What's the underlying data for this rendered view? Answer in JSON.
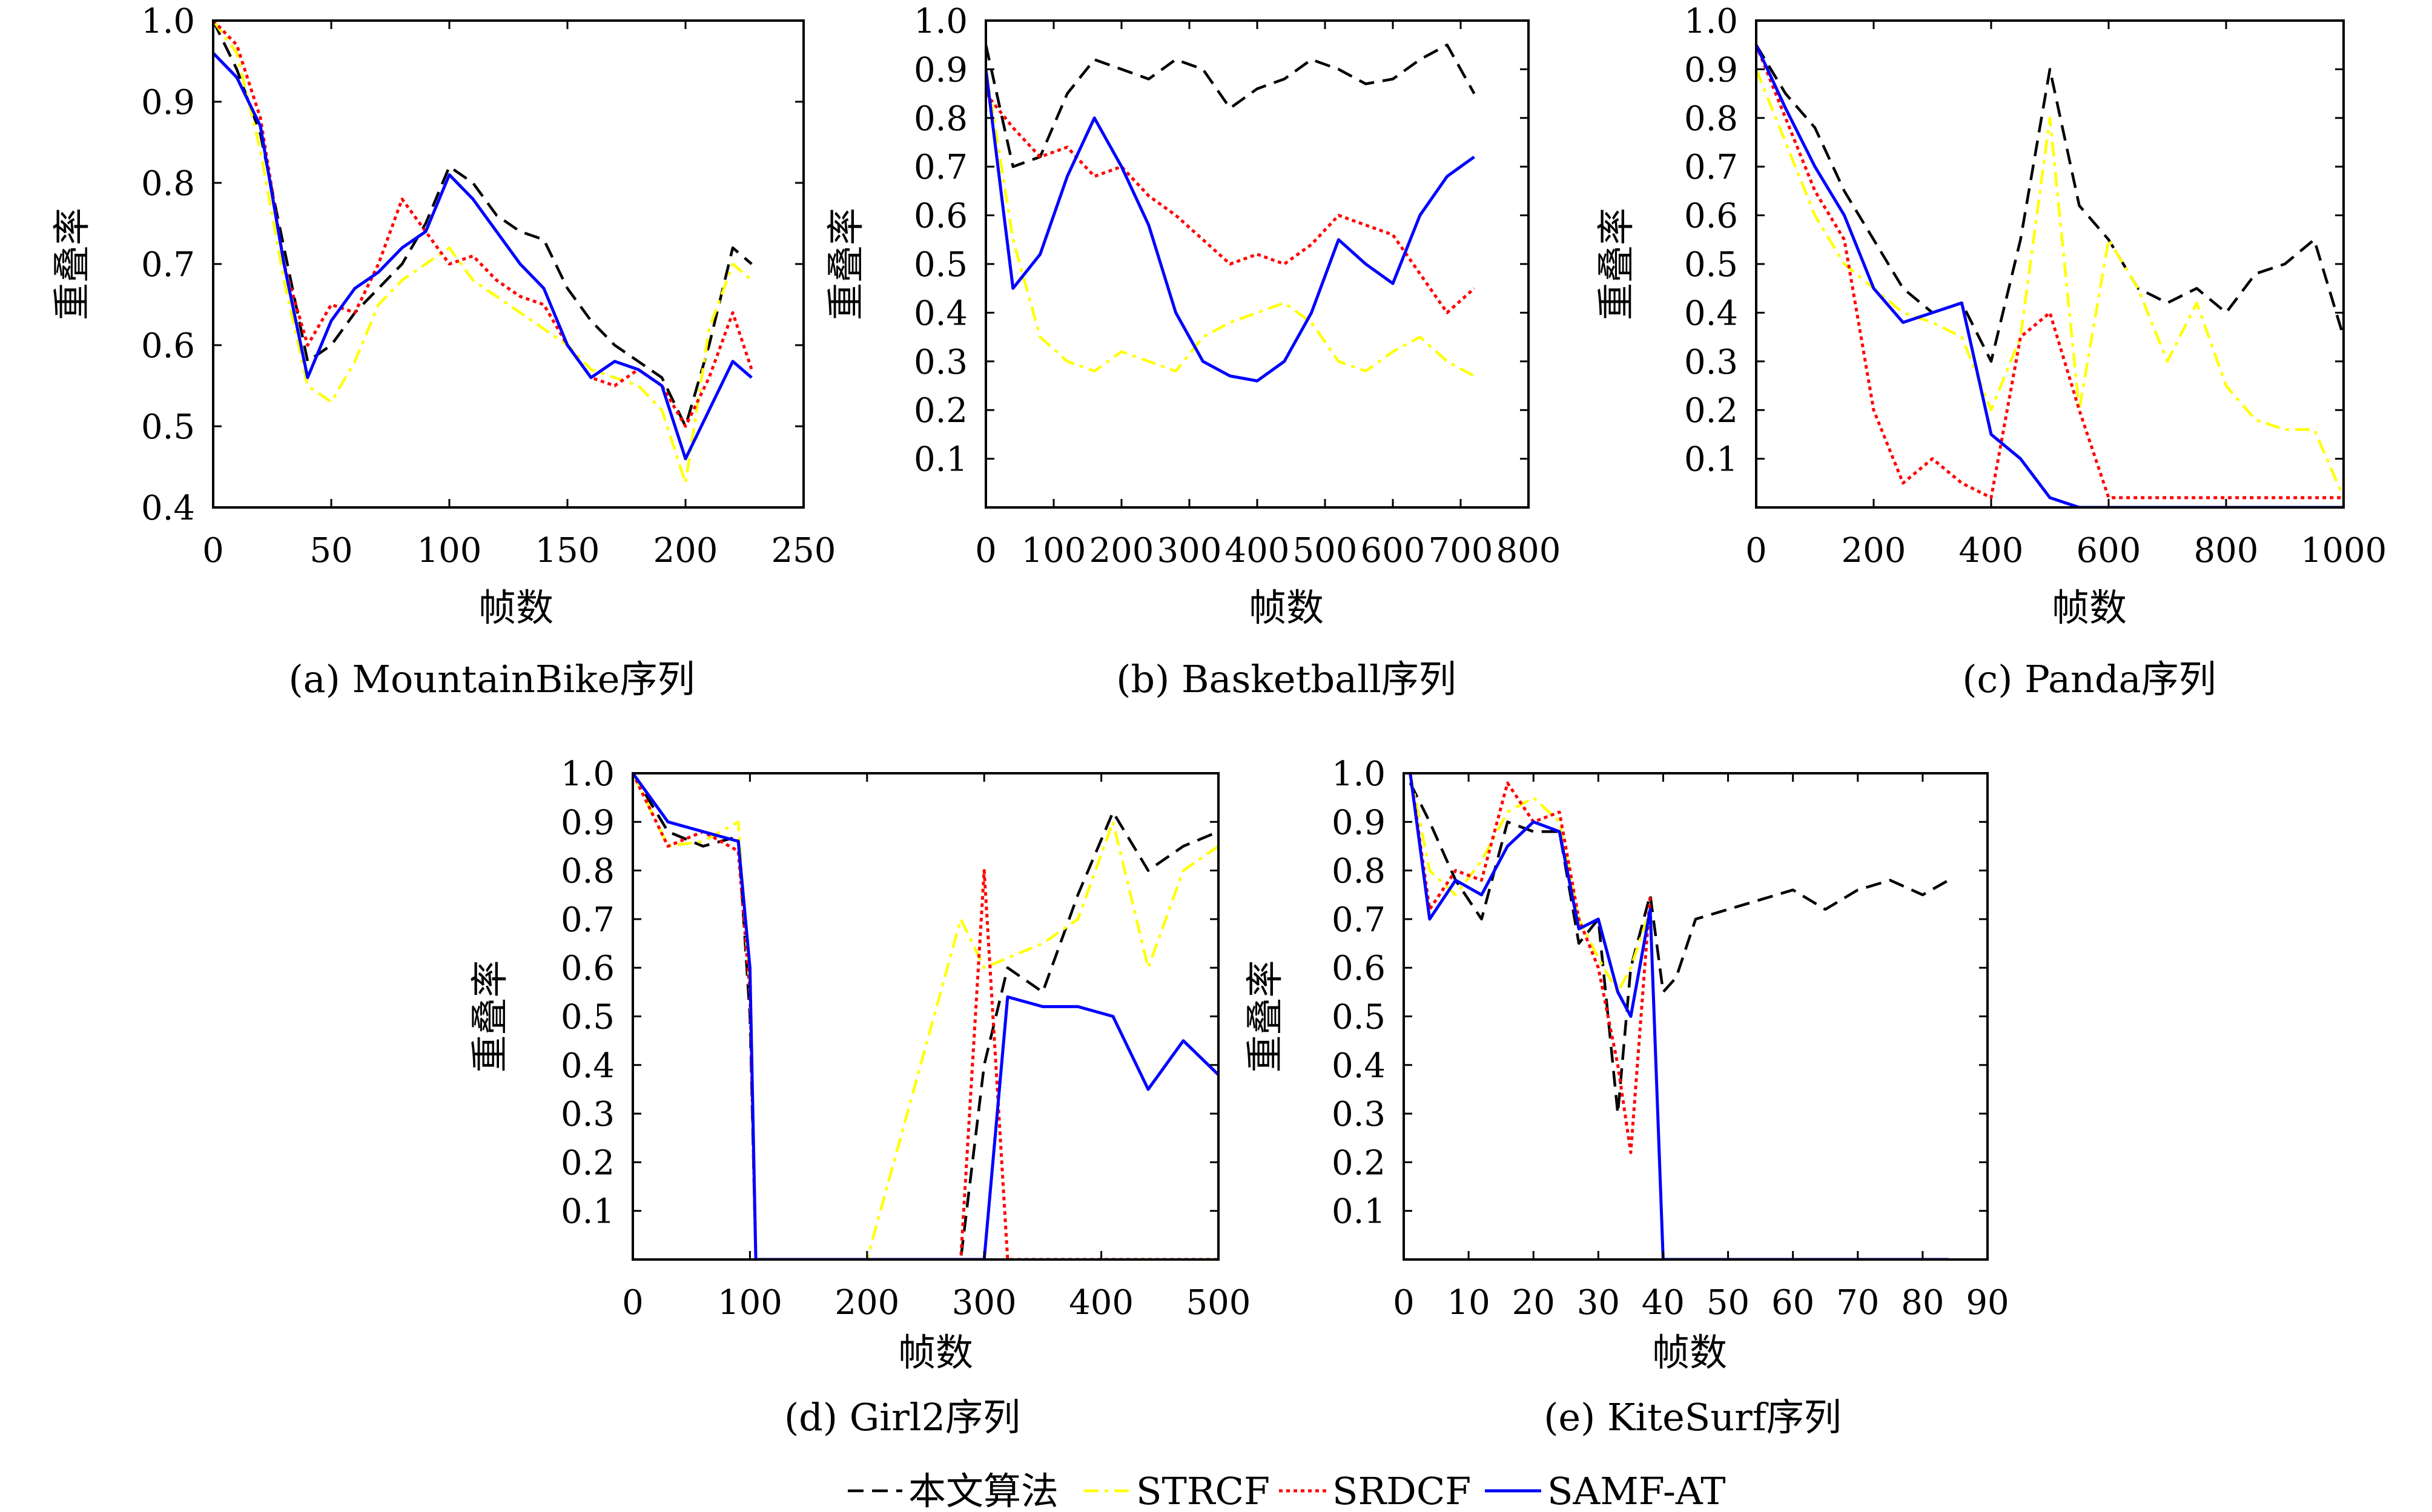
{
  "legend": [
    {
      "label": "本文算法",
      "color": "#000000",
      "style": "dashed"
    },
    {
      "label": "STRCF",
      "color": "#ffff00",
      "style": "dashdot"
    },
    {
      "label": "SRDCF",
      "color": "#ff0000",
      "style": "dotted"
    },
    {
      "label": "SAMF-AT",
      "color": "#0000ff",
      "style": "solid"
    }
  ],
  "chart_data": [
    {
      "type": "line",
      "caption": "(a) MountainBike序列",
      "xlabel": "帧数",
      "ylabel": "重叠率",
      "xlim": [
        0,
        250
      ],
      "ylim": [
        0.4,
        1.0
      ],
      "xticks": [
        0,
        50,
        100,
        150,
        200,
        250
      ],
      "yticks": [
        0.4,
        0.5,
        0.6,
        0.7,
        0.8,
        0.9,
        1.0
      ],
      "x": [
        0,
        10,
        20,
        30,
        40,
        50,
        60,
        70,
        80,
        90,
        100,
        110,
        120,
        130,
        140,
        150,
        160,
        170,
        180,
        190,
        200,
        210,
        220,
        228
      ],
      "series": [
        {
          "name": "本文算法",
          "values": [
            1.0,
            0.94,
            0.86,
            0.72,
            0.58,
            0.6,
            0.64,
            0.67,
            0.7,
            0.75,
            0.82,
            0.8,
            0.76,
            0.74,
            0.73,
            0.67,
            0.63,
            0.6,
            0.58,
            0.56,
            0.5,
            0.6,
            0.72,
            0.7
          ]
        },
        {
          "name": "STRCF",
          "values": [
            1.0,
            0.96,
            0.84,
            0.68,
            0.55,
            0.53,
            0.58,
            0.65,
            0.68,
            0.7,
            0.72,
            0.68,
            0.66,
            0.64,
            0.62,
            0.6,
            0.57,
            0.56,
            0.55,
            0.52,
            0.43,
            0.62,
            0.7,
            0.68
          ]
        },
        {
          "name": "SRDCF",
          "values": [
            1.0,
            0.97,
            0.88,
            0.7,
            0.6,
            0.65,
            0.64,
            0.7,
            0.78,
            0.74,
            0.7,
            0.71,
            0.68,
            0.66,
            0.65,
            0.6,
            0.56,
            0.55,
            0.57,
            0.55,
            0.5,
            0.56,
            0.64,
            0.57
          ]
        },
        {
          "name": "SAMF-AT",
          "values": [
            0.96,
            0.93,
            0.87,
            0.7,
            0.56,
            0.63,
            0.67,
            0.69,
            0.72,
            0.74,
            0.81,
            0.78,
            0.74,
            0.7,
            0.67,
            0.6,
            0.56,
            0.58,
            0.57,
            0.55,
            0.46,
            0.52,
            0.58,
            0.56
          ]
        }
      ]
    },
    {
      "type": "line",
      "caption": "(b) Basketball序列",
      "xlabel": "帧数",
      "ylabel": "重叠率",
      "xlim": [
        0,
        800
      ],
      "ylim": [
        0.0,
        1.0
      ],
      "xticks": [
        0,
        100,
        200,
        300,
        400,
        500,
        600,
        700,
        800
      ],
      "yticks": [
        0.1,
        0.2,
        0.3,
        0.4,
        0.5,
        0.6,
        0.7,
        0.8,
        0.9,
        1.0
      ],
      "x": [
        0,
        40,
        80,
        120,
        160,
        200,
        240,
        280,
        320,
        360,
        400,
        440,
        480,
        520,
        560,
        600,
        640,
        680,
        720
      ],
      "series": [
        {
          "name": "本文算法",
          "values": [
            0.95,
            0.7,
            0.72,
            0.85,
            0.92,
            0.9,
            0.88,
            0.92,
            0.9,
            0.82,
            0.86,
            0.88,
            0.92,
            0.9,
            0.87,
            0.88,
            0.92,
            0.95,
            0.85
          ]
        },
        {
          "name": "STRCF",
          "values": [
            0.9,
            0.55,
            0.35,
            0.3,
            0.28,
            0.32,
            0.3,
            0.28,
            0.35,
            0.38,
            0.4,
            0.42,
            0.38,
            0.3,
            0.28,
            0.32,
            0.35,
            0.3,
            0.27
          ]
        },
        {
          "name": "SRDCF",
          "values": [
            0.85,
            0.78,
            0.72,
            0.74,
            0.68,
            0.7,
            0.64,
            0.6,
            0.55,
            0.5,
            0.52,
            0.5,
            0.54,
            0.6,
            0.58,
            0.56,
            0.48,
            0.4,
            0.45
          ]
        },
        {
          "name": "SAMF-AT",
          "values": [
            0.9,
            0.45,
            0.52,
            0.68,
            0.8,
            0.7,
            0.58,
            0.4,
            0.3,
            0.27,
            0.26,
            0.3,
            0.4,
            0.55,
            0.5,
            0.46,
            0.6,
            0.68,
            0.72
          ]
        }
      ]
    },
    {
      "type": "line",
      "caption": "(c) Panda序列",
      "xlabel": "帧数",
      "ylabel": "重叠率",
      "xlim": [
        0,
        1000
      ],
      "ylim": [
        0.0,
        1.0
      ],
      "xticks": [
        0,
        200,
        400,
        600,
        800,
        1000
      ],
      "yticks": [
        0.1,
        0.2,
        0.3,
        0.4,
        0.5,
        0.6,
        0.7,
        0.8,
        0.9,
        1.0
      ],
      "x": [
        0,
        50,
        100,
        150,
        200,
        250,
        300,
        350,
        400,
        450,
        500,
        550,
        600,
        650,
        700,
        750,
        800,
        850,
        900,
        950,
        1000
      ],
      "series": [
        {
          "name": "本文算法",
          "values": [
            0.95,
            0.85,
            0.78,
            0.65,
            0.55,
            0.45,
            0.4,
            0.42,
            0.3,
            0.55,
            0.9,
            0.62,
            0.55,
            0.45,
            0.42,
            0.45,
            0.4,
            0.48,
            0.5,
            0.55,
            0.35
          ]
        },
        {
          "name": "STRCF",
          "values": [
            0.9,
            0.75,
            0.6,
            0.5,
            0.45,
            0.4,
            0.38,
            0.35,
            0.2,
            0.35,
            0.8,
            0.2,
            0.55,
            0.45,
            0.3,
            0.42,
            0.25,
            0.18,
            0.16,
            0.16,
            0.02
          ]
        },
        {
          "name": "SRDCF",
          "values": [
            0.95,
            0.8,
            0.65,
            0.55,
            0.2,
            0.05,
            0.1,
            0.05,
            0.02,
            0.35,
            0.4,
            0.2,
            0.02,
            0.02,
            0.02,
            0.02,
            0.02,
            0.02,
            0.02,
            0.02,
            0.02
          ]
        },
        {
          "name": "SAMF-AT",
          "values": [
            0.95,
            0.82,
            0.7,
            0.6,
            0.45,
            0.38,
            0.4,
            0.42,
            0.15,
            0.1,
            0.02,
            0.0,
            0.0,
            0.0,
            0.0,
            0.0,
            0.0,
            0.0,
            0.0,
            0.0,
            0.0
          ]
        }
      ]
    },
    {
      "type": "line",
      "caption": "(d) Girl2序列",
      "xlabel": "帧数",
      "ylabel": "重叠率",
      "xlim": [
        0,
        500
      ],
      "ylim": [
        0.0,
        1.0
      ],
      "xticks": [
        0,
        100,
        200,
        300,
        400,
        500
      ],
      "yticks": [
        0.1,
        0.2,
        0.3,
        0.4,
        0.5,
        0.6,
        0.7,
        0.8,
        0.9,
        1.0
      ],
      "x": [
        0,
        30,
        60,
        90,
        100,
        105,
        115,
        200,
        280,
        300,
        320,
        350,
        380,
        410,
        440,
        470,
        500
      ],
      "series": [
        {
          "name": "本文算法",
          "values": [
            1.0,
            0.88,
            0.85,
            0.87,
            0.5,
            0.0,
            0.0,
            0.0,
            0.0,
            0.4,
            0.6,
            0.55,
            0.75,
            0.92,
            0.8,
            0.85,
            0.88
          ]
        },
        {
          "name": "STRCF",
          "values": [
            1.0,
            0.85,
            0.86,
            0.9,
            0.55,
            0.0,
            0.0,
            0.0,
            0.7,
            0.6,
            0.62,
            0.65,
            0.7,
            0.9,
            0.6,
            0.8,
            0.85
          ]
        },
        {
          "name": "SRDCF",
          "values": [
            1.0,
            0.85,
            0.88,
            0.84,
            0.55,
            0.0,
            0.0,
            0.0,
            0.0,
            0.8,
            0.0,
            0.0,
            0.0,
            0.0,
            0.0,
            0.0,
            0.0
          ]
        },
        {
          "name": "SAMF-AT",
          "values": [
            1.0,
            0.9,
            0.88,
            0.86,
            0.6,
            0.0,
            0.0,
            0.0,
            0.0,
            0.0,
            0.54,
            0.52,
            0.52,
            0.5,
            0.35,
            0.45,
            0.38
          ]
        }
      ]
    },
    {
      "type": "line",
      "caption": "(e) KiteSurf序列",
      "xlabel": "帧数",
      "ylabel": "重叠率",
      "xlim": [
        0,
        90
      ],
      "ylim": [
        0.0,
        1.0
      ],
      "xticks": [
        0,
        10,
        20,
        30,
        40,
        50,
        60,
        70,
        80,
        90
      ],
      "yticks": [
        0.1,
        0.2,
        0.3,
        0.4,
        0.5,
        0.6,
        0.7,
        0.8,
        0.9,
        1.0
      ],
      "x": [
        1,
        4,
        8,
        12,
        16,
        20,
        24,
        27,
        30,
        33,
        35,
        38,
        40,
        42,
        45,
        50,
        55,
        60,
        65,
        70,
        75,
        80,
        84
      ],
      "series": [
        {
          "name": "本文算法",
          "values": [
            0.98,
            0.9,
            0.78,
            0.7,
            0.9,
            0.88,
            0.88,
            0.65,
            0.7,
            0.3,
            0.6,
            0.75,
            0.55,
            0.58,
            0.7,
            0.72,
            0.74,
            0.76,
            0.72,
            0.76,
            0.78,
            0.75,
            0.78
          ]
        },
        {
          "name": "STRCF",
          "values": [
            1.0,
            0.8,
            0.75,
            0.82,
            0.92,
            0.95,
            0.9,
            0.7,
            0.62,
            0.55,
            0.6,
            0.72,
            null,
            null,
            null,
            null,
            null,
            null,
            null,
            null,
            null,
            null,
            null
          ]
        },
        {
          "name": "SRDCF",
          "values": [
            1.0,
            0.72,
            0.8,
            0.78,
            0.98,
            0.9,
            0.92,
            0.7,
            0.6,
            0.4,
            0.22,
            0.75,
            null,
            null,
            null,
            null,
            null,
            null,
            null,
            null,
            null,
            null,
            null
          ]
        },
        {
          "name": "SAMF-AT",
          "values": [
            1.0,
            0.7,
            0.78,
            0.75,
            0.85,
            0.9,
            0.88,
            0.68,
            0.7,
            0.55,
            0.5,
            0.72,
            0.0,
            0.0,
            0.0,
            0.0,
            0.0,
            0.0,
            0.0,
            0.0,
            0.0,
            0.0,
            0.0
          ]
        }
      ]
    }
  ]
}
